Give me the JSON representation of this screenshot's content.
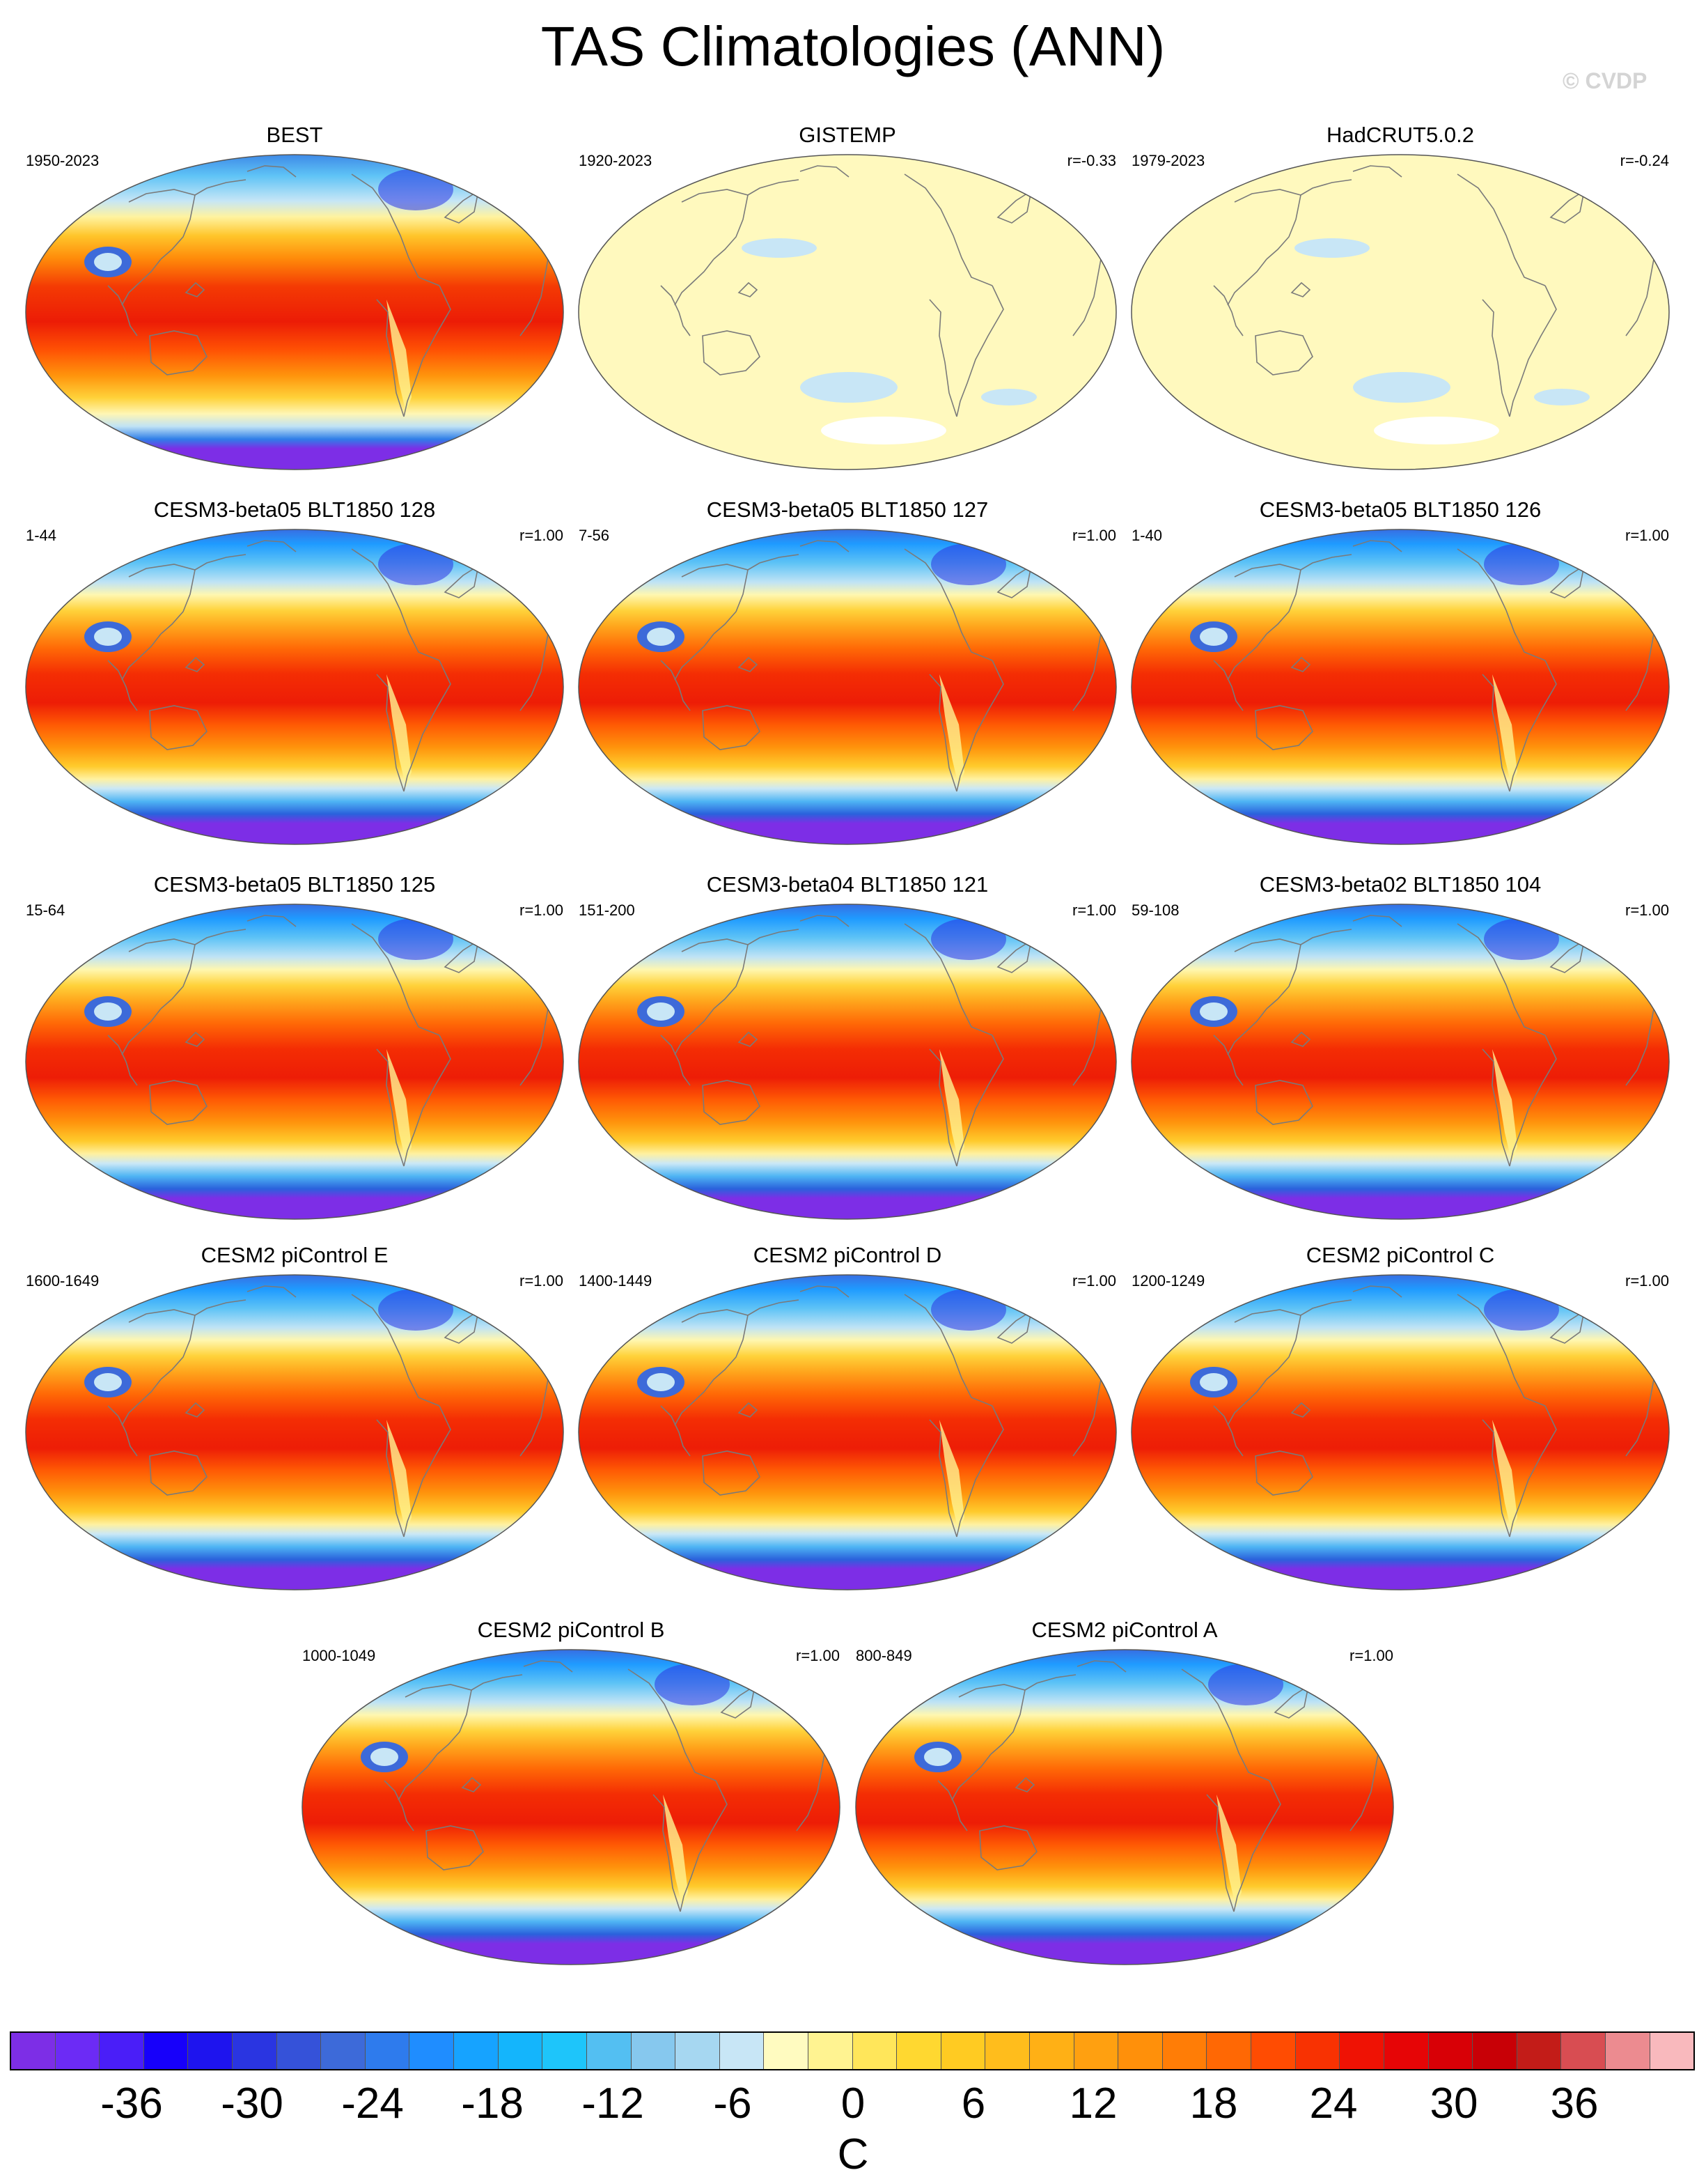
{
  "title": "TAS Climatologies (ANN)",
  "watermark": "© CVDP",
  "panels": [
    {
      "title": "BEST",
      "period": "1950-2023",
      "corr": "",
      "style": "obs"
    },
    {
      "title": "GISTEMP",
      "period": "1920-2023",
      "corr": "r=-0.33",
      "style": "anomaly"
    },
    {
      "title": "HadCRUT5.0.2",
      "period": "1979-2023",
      "corr": "r=-0.24",
      "style": "anomaly"
    },
    {
      "title": "CESM3-beta05 BLT1850 128",
      "period": "1-44",
      "corr": "r=1.00",
      "style": "model"
    },
    {
      "title": "CESM3-beta05 BLT1850 127",
      "period": "7-56",
      "corr": "r=1.00",
      "style": "model"
    },
    {
      "title": "CESM3-beta05 BLT1850 126",
      "period": "1-40",
      "corr": "r=1.00",
      "style": "model"
    },
    {
      "title": "CESM3-beta05 BLT1850 125",
      "period": "15-64",
      "corr": "r=1.00",
      "style": "model"
    },
    {
      "title": "CESM3-beta04 BLT1850 121",
      "period": "151-200",
      "corr": "r=1.00",
      "style": "model"
    },
    {
      "title": "CESM3-beta02 BLT1850 104",
      "period": "59-108",
      "corr": "r=1.00",
      "style": "model"
    },
    {
      "title": "CESM2 piControl E",
      "period": "1600-1649",
      "corr": "r=1.00",
      "style": "model"
    },
    {
      "title": "CESM2 piControl D",
      "period": "1400-1449",
      "corr": "r=1.00",
      "style": "model"
    },
    {
      "title": "CESM2 piControl C",
      "period": "1200-1249",
      "corr": "r=1.00",
      "style": "model"
    },
    {
      "title": "CESM2 piControl B",
      "period": "1000-1049",
      "corr": "r=1.00",
      "style": "model"
    },
    {
      "title": "CESM2 piControl A",
      "period": "800-849",
      "corr": "r=1.00",
      "style": "model"
    }
  ],
  "colorbar": {
    "unit": "C",
    "tick_labels": [
      "-36",
      "-30",
      "-24",
      "-18",
      "-12",
      "-6",
      "0",
      "6",
      "12",
      "18",
      "24",
      "30",
      "36"
    ],
    "colors": [
      "#7d2ee6",
      "#6c2bf5",
      "#4a1ef8",
      "#1700fa",
      "#1e14ee",
      "#2a35e1",
      "#3552d9",
      "#3d6ad9",
      "#2e7bed",
      "#1f8dff",
      "#16a3ff",
      "#14b5fc",
      "#1ec5fa",
      "#53bff2",
      "#86c8ee",
      "#a6d7f1",
      "#c8e6f6",
      "#fffbc0",
      "#fff391",
      "#ffe65a",
      "#ffd830",
      "#ffcb22",
      "#ffbd1c",
      "#ffb015",
      "#ffa010",
      "#ff900a",
      "#ff7d06",
      "#ff6804",
      "#ff4c02",
      "#f83202",
      "#ef1204",
      "#e60506",
      "#d80006",
      "#c80006",
      "#c31c18",
      "#d84d52",
      "#ec8b90",
      "#f9b9bd"
    ]
  }
}
